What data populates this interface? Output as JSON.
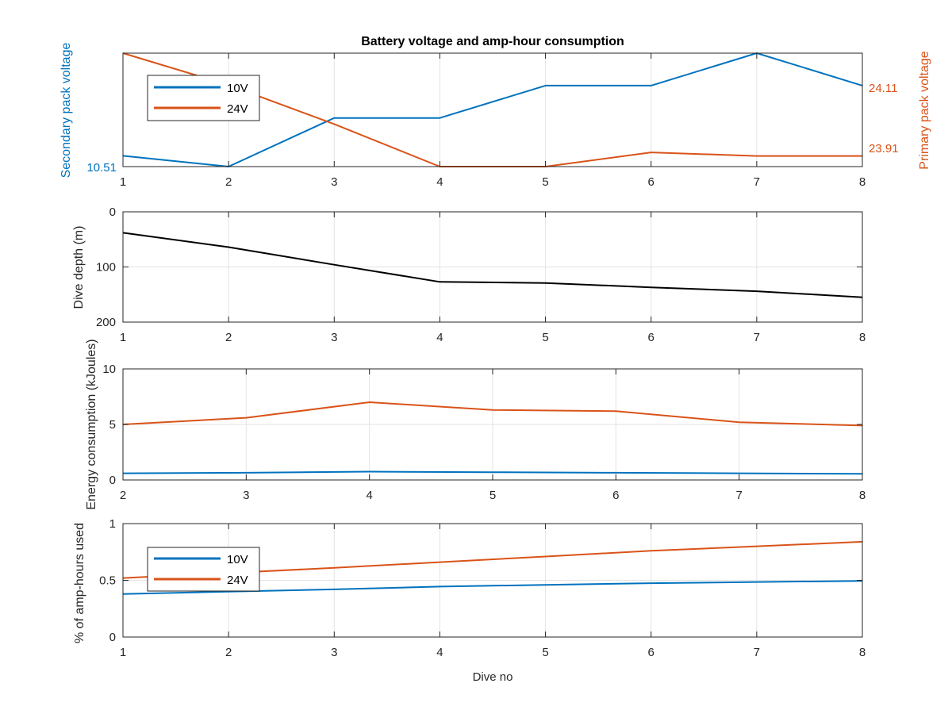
{
  "figure": {
    "title": "Battery voltage and amp-hour consumption",
    "colors": {
      "blue": "#0072BD",
      "orange": "#D95319",
      "black": "#000000",
      "grid": "#e3e3e3",
      "frame": "#262626"
    }
  },
  "chart_data": [
    {
      "id": "voltage",
      "type": "line",
      "title": "Battery voltage and amp-hour consumption",
      "xlabel": "",
      "ylabel": "Secondary pack voltage",
      "ylabel_right": "Primary pack voltage",
      "xlim": [
        1,
        8
      ],
      "x_ticks": [
        "1",
        "2",
        "3",
        "4",
        "5",
        "6",
        "7",
        "8"
      ],
      "grid": "x-only",
      "legend": {
        "position": "top-left",
        "entries": [
          "10V",
          "24V"
        ]
      },
      "y_left": {
        "ticks": [
          "10.51"
        ],
        "color": "#0072BD"
      },
      "y_right": {
        "ticks": [
          "24.11",
          "23.91"
        ],
        "color": "#D95319"
      },
      "series": [
        {
          "name": "10V",
          "axis": "left",
          "color": "#0072BD",
          "x": [
            1,
            2,
            3,
            4,
            5,
            6,
            7,
            8
          ],
          "y": [
            10.52,
            10.51,
            10.555,
            10.555,
            10.585,
            10.585,
            10.615,
            10.585
          ]
        },
        {
          "name": "24V",
          "axis": "right",
          "color": "#D95319",
          "x": [
            1,
            2,
            3,
            4,
            5,
            6,
            7,
            8
          ],
          "y": [
            24.2,
            24.11,
            24.0,
            23.88,
            23.88,
            23.92,
            23.91,
            23.91
          ]
        }
      ]
    },
    {
      "id": "depth",
      "type": "line",
      "xlabel": "",
      "ylabel": "Dive depth (m)",
      "xlim": [
        1,
        8
      ],
      "ylim": [
        0,
        200
      ],
      "y_reversed": true,
      "x_ticks": [
        "1",
        "2",
        "3",
        "4",
        "5",
        "6",
        "7",
        "8"
      ],
      "y_ticks": [
        "0",
        "100",
        "200"
      ],
      "grid": "both",
      "series": [
        {
          "color": "#000000",
          "x": [
            1,
            2,
            3,
            4,
            5,
            6,
            7,
            8
          ],
          "y": [
            38,
            64,
            96,
            127,
            129,
            137,
            144,
            155
          ]
        }
      ]
    },
    {
      "id": "energy",
      "type": "line",
      "xlabel": "",
      "ylabel": "Energy consumption (kJoules)",
      "xlim": [
        2,
        8
      ],
      "ylim": [
        0,
        10
      ],
      "x_ticks": [
        "2",
        "3",
        "4",
        "5",
        "6",
        "7",
        "8"
      ],
      "y_ticks": [
        "0",
        "5",
        "10"
      ],
      "grid": "both",
      "series": [
        {
          "color": "#0072BD",
          "x": [
            2,
            3,
            4,
            5,
            6,
            7,
            8
          ],
          "y": [
            0.6,
            0.65,
            0.75,
            0.7,
            0.65,
            0.6,
            0.55
          ]
        },
        {
          "color": "#D95319",
          "x": [
            2,
            3,
            4,
            5,
            6,
            7,
            8
          ],
          "y": [
            5.0,
            5.6,
            7.0,
            6.3,
            6.2,
            5.2,
            4.9
          ]
        }
      ]
    },
    {
      "id": "amphours",
      "type": "line",
      "xlabel": "Dive no",
      "ylabel": "% of amp-hours used",
      "xlim": [
        1,
        8
      ],
      "ylim": [
        0,
        1
      ],
      "x_ticks": [
        "1",
        "2",
        "3",
        "4",
        "5",
        "6",
        "7",
        "8"
      ],
      "y_ticks": [
        "0",
        "0.5",
        "1"
      ],
      "grid": "both",
      "legend": {
        "position": "top-left",
        "entries": [
          "10V",
          "24V"
        ]
      },
      "series": [
        {
          "name": "10V",
          "color": "#0072BD",
          "x": [
            1,
            2,
            3,
            4,
            5,
            6,
            7,
            8
          ],
          "y": [
            0.38,
            0.4,
            0.42,
            0.445,
            0.46,
            0.475,
            0.485,
            0.495
          ]
        },
        {
          "name": "24V",
          "color": "#D95319",
          "x": [
            1,
            2,
            3,
            4,
            5,
            6,
            7,
            8
          ],
          "y": [
            0.52,
            0.565,
            0.61,
            0.66,
            0.71,
            0.76,
            0.8,
            0.84
          ]
        }
      ]
    }
  ]
}
